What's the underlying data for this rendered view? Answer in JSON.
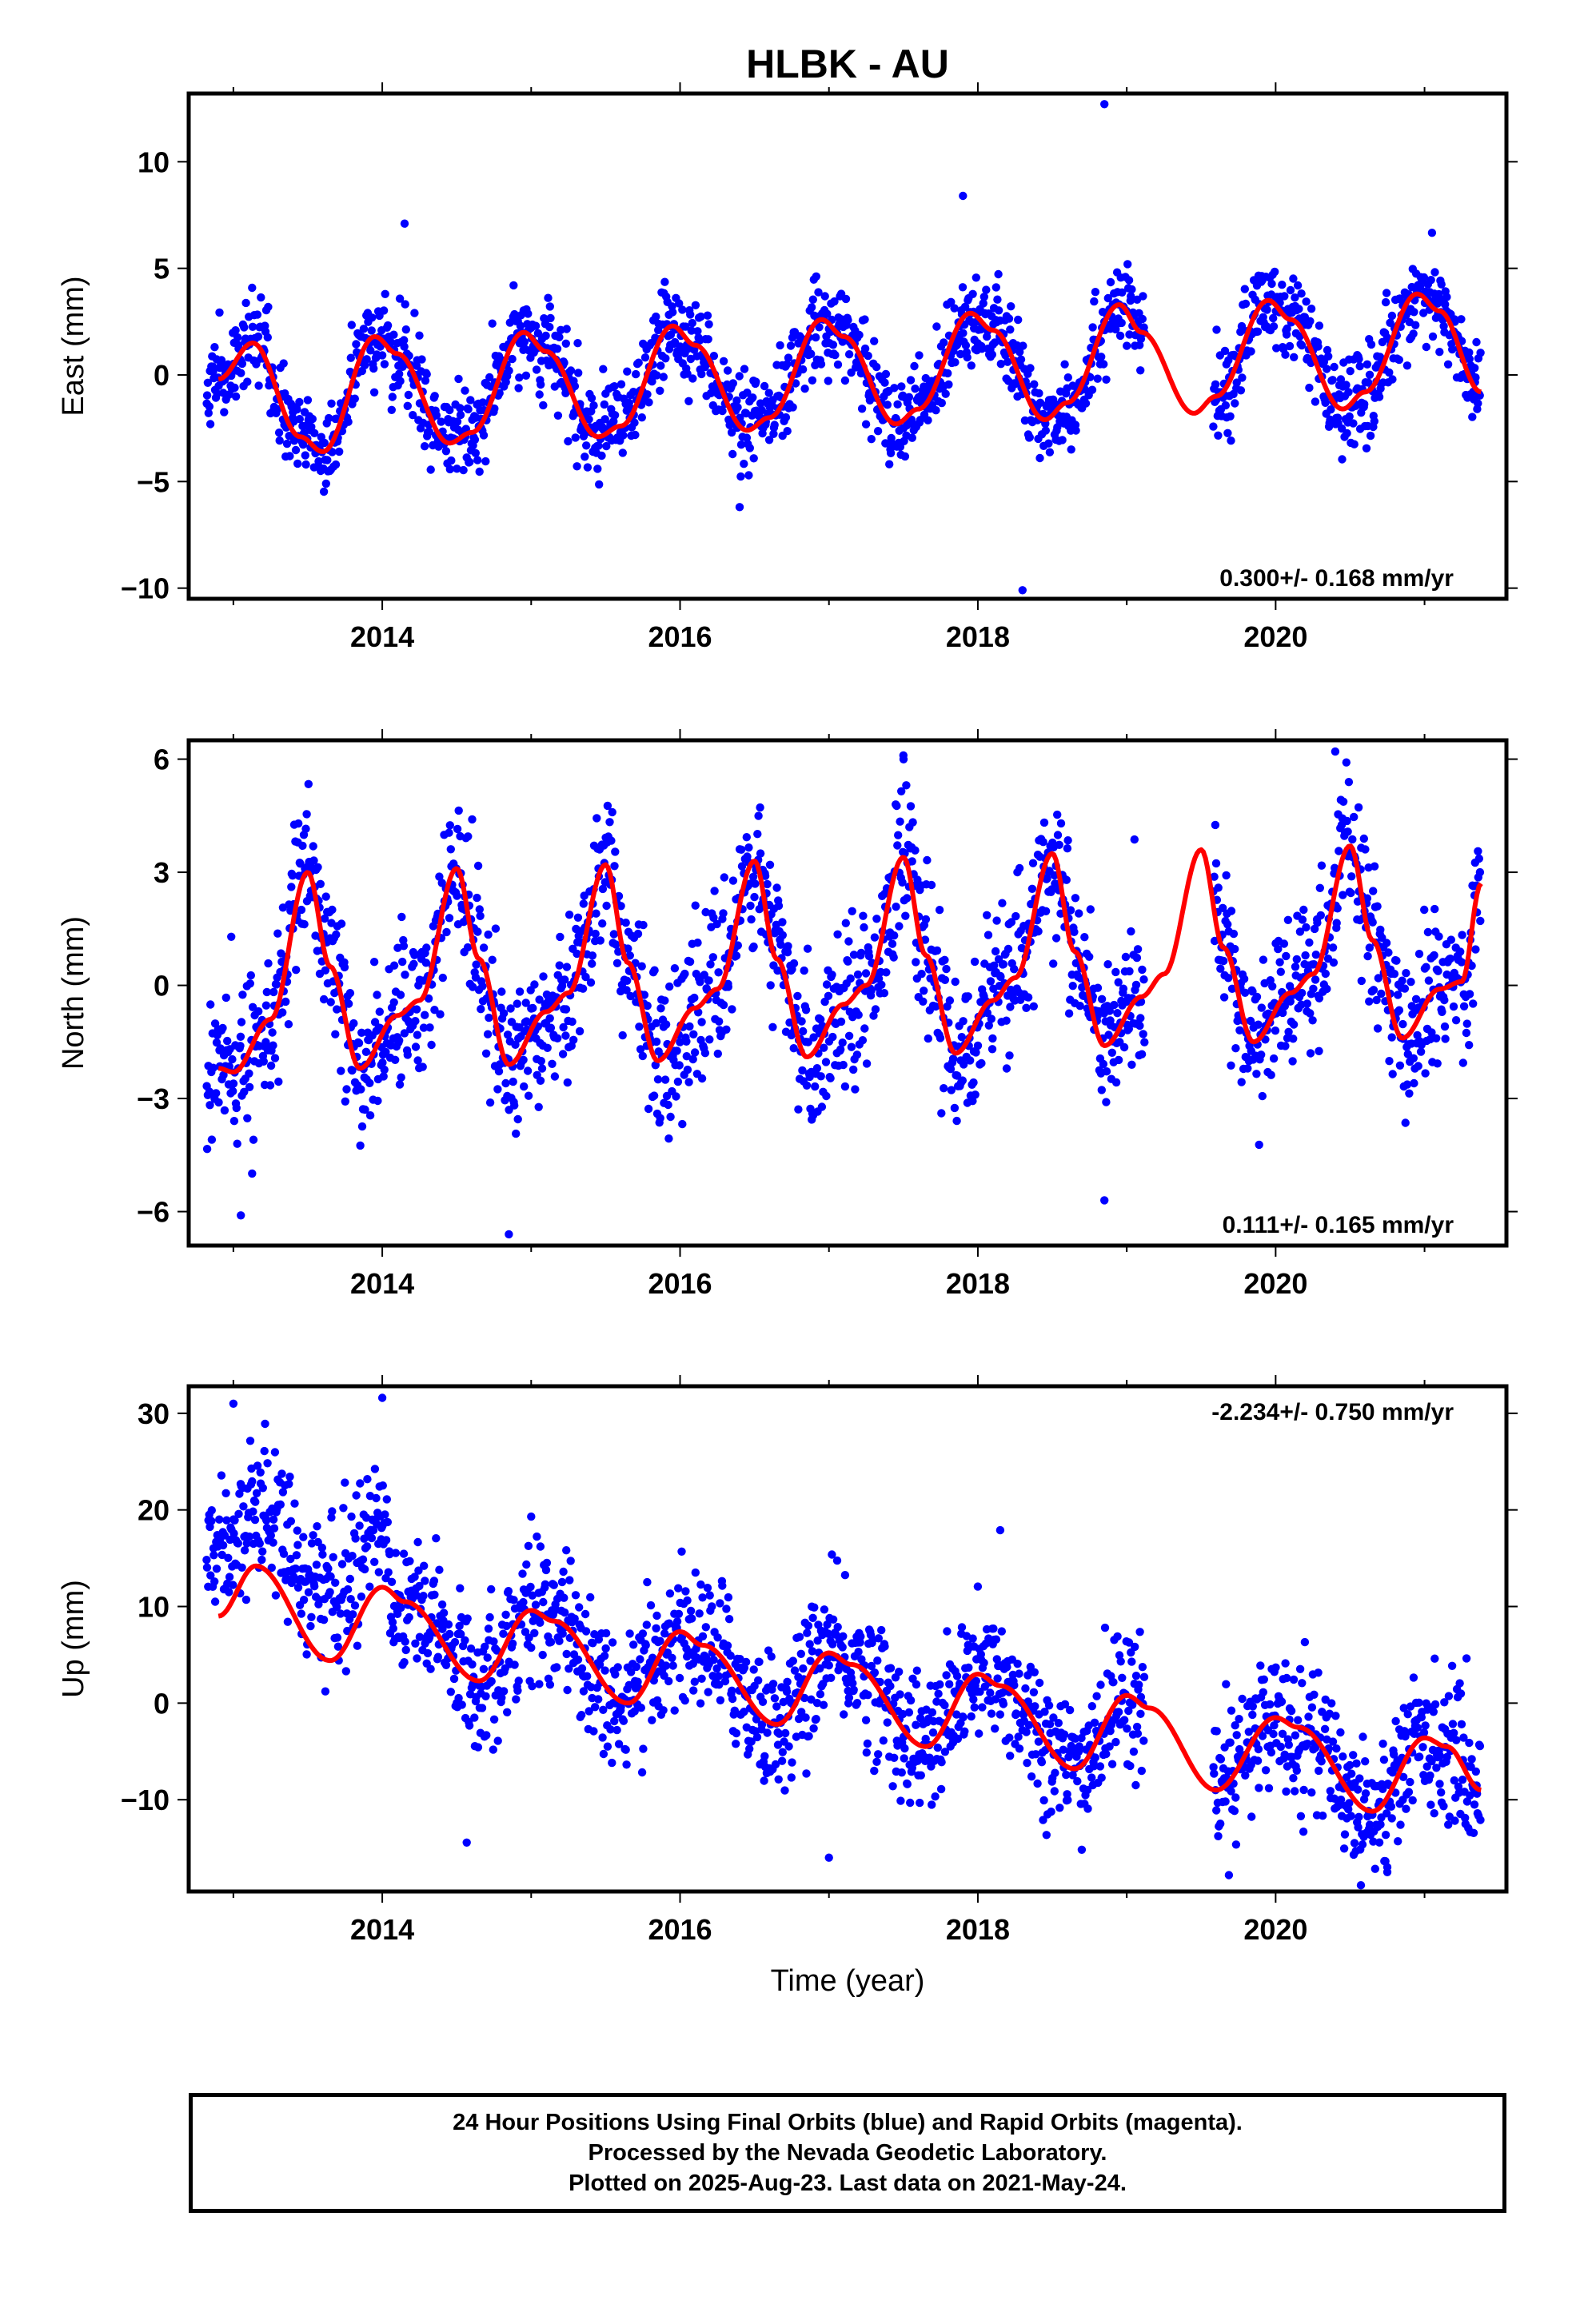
{
  "title": "HLBK - AU",
  "xlabel": "Time (year)",
  "footer": {
    "line1": "24 Hour Positions Using Final Orbits (blue) and Rapid Orbits (magenta).",
    "line2": "Processed by the Nevada Geodetic Laboratory.",
    "line3": "Plotted on 2025-Aug-23. Last data on 2021-May-24."
  },
  "colors": {
    "points": "#0000ff",
    "model": "#ff0000",
    "frame": "#000000"
  },
  "chart_data": [
    {
      "type": "scatter",
      "name": "east",
      "ylabel": "East (mm)",
      "rate_text": "0.300+/- 0.168 mm/yr",
      "xlim": [
        2012.7,
        2021.55
      ],
      "ylim": [
        -10.5,
        13.2
      ],
      "xticks": [
        2014,
        2016,
        2018,
        2020
      ],
      "xtick_labels": [
        "2014",
        "2016",
        "2018",
        "2020"
      ],
      "yticks": [
        -10,
        -5,
        0,
        5,
        10
      ],
      "ytick_labels": [
        "−10",
        "−5",
        "0",
        "5",
        "10"
      ],
      "model": {
        "x": [
          2012.9,
          2013.13,
          2013.45,
          2013.6,
          2013.95,
          2014.1,
          2014.45,
          2014.6,
          2014.95,
          2015.1,
          2015.45,
          2015.6,
          2015.95,
          2016.1,
          2016.45,
          2016.6,
          2016.95,
          2017.1,
          2017.45,
          2017.6,
          2017.95,
          2018.1,
          2018.45,
          2018.6,
          2018.95,
          2019.1,
          2019.45,
          2019.6,
          2019.95,
          2020.1,
          2020.45,
          2020.6,
          2020.95,
          2021.1,
          2021.38
        ],
        "y": [
          -0.2,
          1.5,
          -2.9,
          -3.6,
          1.8,
          1.0,
          -3.2,
          -2.7,
          2.0,
          1.1,
          -2.9,
          -2.4,
          2.3,
          1.4,
          -2.6,
          -2.0,
          2.6,
          1.8,
          -2.3,
          -1.6,
          2.9,
          2.1,
          -2.1,
          -1.3,
          3.3,
          2.0,
          -1.8,
          -1.0,
          3.5,
          2.6,
          -1.6,
          -0.8,
          3.8,
          3.0,
          -0.8
        ]
      },
      "scatter": {
        "sigma": 1.05,
        "gap": [
          2019.12,
          2019.58
        ],
        "outliers": [
          [
            2014.15,
            7.1
          ],
          [
            2018.85,
            12.7
          ],
          [
            2017.9,
            8.4
          ],
          [
            2018.3,
            -10.1
          ],
          [
            2016.4,
            -6.2
          ]
        ]
      }
    },
    {
      "type": "scatter",
      "name": "north",
      "ylabel": "North (mm)",
      "rate_text": "0.111+/- 0.165 mm/yr",
      "xlim": [
        2012.7,
        2021.55
      ],
      "ylim": [
        -6.9,
        6.5
      ],
      "xticks": [
        2014,
        2016,
        2018,
        2020
      ],
      "xtick_labels": [
        "2014",
        "2016",
        "2018",
        "2020"
      ],
      "yticks": [
        -6,
        -3,
        0,
        3,
        6
      ],
      "ytick_labels": [
        "−6",
        "−3",
        "0",
        "3",
        "6"
      ],
      "model": {
        "x": [
          2012.9,
          2013.0,
          2013.25,
          2013.5,
          2013.65,
          2013.85,
          2014.1,
          2014.25,
          2014.5,
          2014.65,
          2014.85,
          2015.1,
          2015.25,
          2015.5,
          2015.65,
          2015.85,
          2016.1,
          2016.25,
          2016.5,
          2016.65,
          2016.85,
          2017.1,
          2017.25,
          2017.5,
          2017.65,
          2017.85,
          2018.1,
          2018.25,
          2018.5,
          2018.65,
          2018.85,
          2019.1,
          2019.25,
          2019.5,
          2019.65,
          2019.85,
          2020.1,
          2020.25,
          2020.5,
          2020.65,
          2020.85,
          2021.1,
          2021.25,
          2021.38
        ],
        "y": [
          -2.2,
          -2.3,
          -0.9,
          3.0,
          0.5,
          -2.2,
          -0.8,
          -0.4,
          3.1,
          0.7,
          -2.1,
          -0.7,
          -0.2,
          3.2,
          0.6,
          -2.0,
          -0.6,
          -0.1,
          3.3,
          0.7,
          -1.9,
          -0.5,
          0.0,
          3.4,
          0.8,
          -1.8,
          -0.4,
          0.2,
          3.5,
          0.9,
          -1.6,
          -0.3,
          0.3,
          3.6,
          1.0,
          -1.5,
          -0.2,
          0.3,
          3.7,
          1.2,
          -1.4,
          -0.1,
          0.1,
          2.7
        ]
      },
      "scatter": {
        "sigma": 1.0,
        "gap": [
          2019.12,
          2019.58
        ],
        "outliers": [
          [
            2014.85,
            -6.6
          ],
          [
            2013.05,
            -6.1
          ],
          [
            2017.5,
            6.1
          ],
          [
            2020.4,
            6.2
          ],
          [
            2018.85,
            -5.7
          ]
        ]
      }
    },
    {
      "type": "scatter",
      "name": "up",
      "ylabel": "Up (mm)",
      "rate_text": "-2.234+/- 0.750 mm/yr",
      "xlim": [
        2012.7,
        2021.55
      ],
      "ylim": [
        -19.5,
        32.8
      ],
      "xticks": [
        2014,
        2016,
        2018,
        2020
      ],
      "xtick_labels": [
        "2014",
        "2016",
        "2018",
        "2020"
      ],
      "yticks": [
        -10,
        0,
        10,
        20,
        30
      ],
      "ytick_labels": [
        "−10",
        "0",
        "10",
        "20",
        "30"
      ],
      "model": {
        "x": [
          2012.9,
          2013.15,
          2013.65,
          2014.0,
          2014.15,
          2014.65,
          2015.0,
          2015.15,
          2015.65,
          2016.0,
          2016.15,
          2016.65,
          2017.0,
          2017.15,
          2017.65,
          2018.0,
          2018.15,
          2018.65,
          2019.0,
          2019.15,
          2019.6,
          2020.0,
          2020.15,
          2020.65,
          2021.0,
          2021.15,
          2021.38
        ],
        "y": [
          9.0,
          14.2,
          4.4,
          12.0,
          10.5,
          2.3,
          9.6,
          8.5,
          0.0,
          7.4,
          6.0,
          -2.2,
          5.2,
          4.0,
          -4.5,
          3.0,
          1.8,
          -6.8,
          0.8,
          -0.5,
          -9.0,
          -1.5,
          -2.5,
          -11.2,
          -3.6,
          -4.5,
          -9.0
        ]
      },
      "scatter": {
        "sigma": 3.6,
        "gap": [
          2019.12,
          2019.58
        ],
        "offset_before": 2014.05,
        "offset_value": 6.5,
        "outliers": [
          [
            2014.0,
            31.6
          ],
          [
            2013.0,
            31.0
          ],
          [
            2018.15,
            17.9
          ],
          [
            2015.0,
            19.3
          ],
          [
            2020.75,
            -17.5
          ],
          [
            2017.0,
            -16.0
          ]
        ]
      }
    }
  ]
}
